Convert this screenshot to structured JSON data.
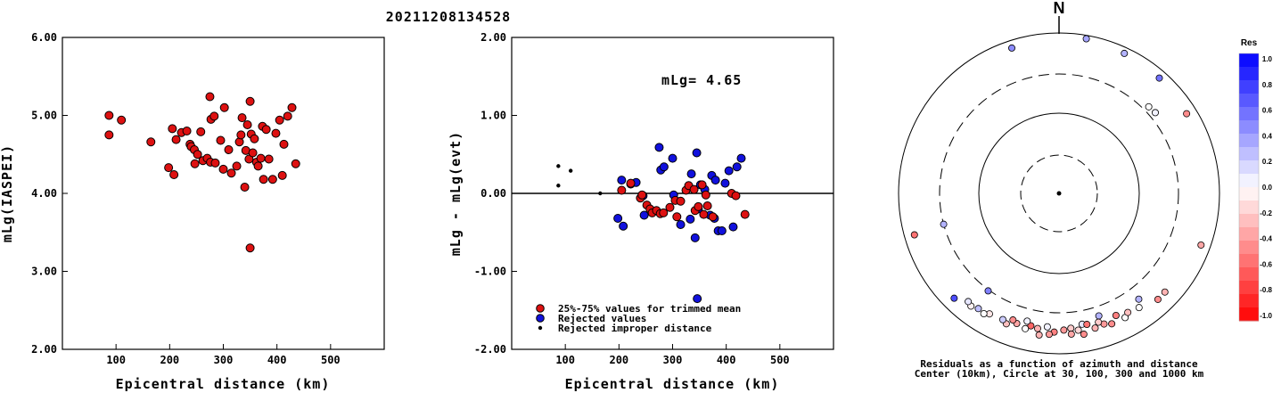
{
  "title": "20211208134528",
  "colors": {
    "trimmed": "#dd1111",
    "rejected": "#1111dd",
    "improper": "#000000"
  },
  "chart_data": [
    {
      "type": "scatter",
      "xlabel": "Epicentral distance (km)",
      "ylabel": "mLg(IASPEI)",
      "xlim": [
        0,
        600
      ],
      "ylim": [
        2.0,
        6.0
      ],
      "xticks": [
        "100",
        "200",
        "300",
        "400",
        "500"
      ],
      "yticks": [
        "2.00",
        "3.00",
        "4.00",
        "5.00",
        "6.00"
      ],
      "grid": false,
      "points": [
        [
          87,
          5.0
        ],
        [
          87,
          4.75
        ],
        [
          110,
          4.94
        ],
        [
          165,
          4.66
        ],
        [
          198,
          4.33
        ],
        [
          205,
          4.83
        ],
        [
          208,
          4.24
        ],
        [
          212,
          4.69
        ],
        [
          222,
          4.78
        ],
        [
          232,
          4.8
        ],
        [
          238,
          4.63
        ],
        [
          240,
          4.6
        ],
        [
          246,
          4.56
        ],
        [
          247,
          4.38
        ],
        [
          252,
          4.5
        ],
        [
          258,
          4.79
        ],
        [
          262,
          4.42
        ],
        [
          270,
          4.45
        ],
        [
          275,
          5.24
        ],
        [
          276,
          4.4
        ],
        [
          277,
          4.95
        ],
        [
          283,
          4.99
        ],
        [
          285,
          4.39
        ],
        [
          295,
          4.68
        ],
        [
          300,
          4.31
        ],
        [
          302,
          5.1
        ],
        [
          310,
          4.56
        ],
        [
          315,
          4.26
        ],
        [
          325,
          4.35
        ],
        [
          330,
          4.66
        ],
        [
          333,
          4.75
        ],
        [
          335,
          4.97
        ],
        [
          340,
          4.08
        ],
        [
          342,
          4.55
        ],
        [
          345,
          4.88
        ],
        [
          348,
          4.44
        ],
        [
          350,
          5.18
        ],
        [
          352,
          4.76
        ],
        [
          355,
          4.52
        ],
        [
          358,
          4.7
        ],
        [
          362,
          4.4
        ],
        [
          365,
          4.35
        ],
        [
          370,
          4.45
        ],
        [
          373,
          4.86
        ],
        [
          375,
          4.18
        ],
        [
          380,
          4.82
        ],
        [
          385,
          4.44
        ],
        [
          392,
          4.18
        ],
        [
          398,
          4.77
        ],
        [
          405,
          4.94
        ],
        [
          410,
          4.23
        ],
        [
          413,
          4.63
        ],
        [
          420,
          4.99
        ],
        [
          428,
          5.1
        ],
        [
          435,
          4.38
        ],
        [
          350,
          3.3
        ]
      ]
    },
    {
      "type": "scatter",
      "xlabel": "Epicentral distance (km)",
      "ylabel": "mLg - mLg(evt)",
      "xlim": [
        0,
        600
      ],
      "ylim": [
        -2.0,
        2.0
      ],
      "xticks": [
        "100",
        "200",
        "300",
        "400",
        "500"
      ],
      "yticks": [
        "-2.00",
        "-1.00",
        "0.00",
        "1.00",
        "2.00"
      ],
      "annotation": "mLg= 4.65",
      "series": [
        {
          "name": "25%-75% values for trimmed mean",
          "points": [
            [
              205,
              0.04
            ],
            [
              222,
              0.13
            ],
            [
              240,
              -0.06
            ],
            [
              243,
              -0.02
            ],
            [
              252,
              -0.15
            ],
            [
              258,
              -0.2
            ],
            [
              262,
              -0.25
            ],
            [
              270,
              -0.22
            ],
            [
              277,
              -0.26
            ],
            [
              283,
              -0.25
            ],
            [
              295,
              -0.18
            ],
            [
              305,
              -0.09
            ],
            [
              315,
              -0.1
            ],
            [
              325,
              0.04
            ],
            [
              330,
              0.1
            ],
            [
              340,
              0.05
            ],
            [
              342,
              -0.22
            ],
            [
              348,
              -0.17
            ],
            [
              355,
              0.11
            ],
            [
              358,
              -0.27
            ],
            [
              362,
              -0.02
            ],
            [
              365,
              -0.16
            ],
            [
              375,
              -0.3
            ],
            [
              410,
              0.0
            ],
            [
              435,
              -0.27
            ],
            [
              418,
              -0.03
            ],
            [
              308,
              -0.3
            ]
          ]
        },
        {
          "name": "Rejected values",
          "points": [
            [
              198,
              -0.32
            ],
            [
              205,
              0.17
            ],
            [
              208,
              -0.42
            ],
            [
              222,
              0.12
            ],
            [
              232,
              0.14
            ],
            [
              245,
              -0.03
            ],
            [
              247,
              -0.28
            ],
            [
              275,
              0.59
            ],
            [
              278,
              0.3
            ],
            [
              284,
              0.34
            ],
            [
              300,
              0.45
            ],
            [
              302,
              -0.02
            ],
            [
              315,
              -0.4
            ],
            [
              333,
              -0.33
            ],
            [
              335,
              0.25
            ],
            [
              342,
              -0.57
            ],
            [
              345,
              0.52
            ],
            [
              348,
              -0.2
            ],
            [
              352,
              0.11
            ],
            [
              360,
              0.05
            ],
            [
              370,
              -0.28
            ],
            [
              373,
              0.23
            ],
            [
              378,
              -0.32
            ],
            [
              380,
              0.17
            ],
            [
              385,
              -0.48
            ],
            [
              392,
              -0.48
            ],
            [
              398,
              0.13
            ],
            [
              405,
              0.29
            ],
            [
              413,
              -0.43
            ],
            [
              420,
              0.34
            ],
            [
              428,
              0.45
            ],
            [
              346,
              -1.35
            ]
          ]
        },
        {
          "name": "Rejected improper distance",
          "points": [
            [
              87,
              0.35
            ],
            [
              87,
              0.1
            ],
            [
              110,
              0.29
            ],
            [
              165,
              0.0
            ]
          ]
        }
      ]
    },
    {
      "type": "scatter",
      "subtype": "polar",
      "direction_label": "N",
      "caption_line1": "Residuals as a function of azimuth and distance",
      "caption_line2": "Center (10km), Circle at 30, 100, 300 and 1000 km",
      "colorbar_title": "Res",
      "colorbar_ticks": [
        "1.0",
        "0.8",
        "0.6",
        "0.4",
        "0.2",
        "0.0",
        "-0.2",
        "-0.4",
        "-0.6",
        "-0.8",
        "-1.0"
      ],
      "circles_km": [
        30,
        100,
        300,
        1000
      ],
      "stations": [
        {
          "az": -18,
          "dist": 800,
          "res": 0.45
        },
        {
          "az": 10,
          "dist": 905,
          "res": 0.35
        },
        {
          "az": 25,
          "dist": 840,
          "res": 0.3
        },
        {
          "az": 41,
          "dist": 800,
          "res": 0.55
        },
        {
          "az": 46,
          "dist": 350,
          "res": 0.0
        },
        {
          "az": 58,
          "dist": 745,
          "res": -0.45
        },
        {
          "az": 50,
          "dist": 360,
          "res": 0.05
        },
        {
          "az": 110,
          "dist": 760,
          "res": -0.35
        },
        {
          "az": 133,
          "dist": 630,
          "res": -0.3
        },
        {
          "az": 137,
          "dist": 635,
          "res": -0.45
        },
        {
          "az": 152,
          "dist": 560,
          "res": -0.02
        },
        {
          "az": 161,
          "dist": 520,
          "res": -0.4
        },
        {
          "az": -106,
          "dist": 745,
          "res": -0.55
        },
        {
          "az": -105,
          "dist": 300,
          "res": 0.3
        },
        {
          "az": -144,
          "dist": 310,
          "res": 0.5
        },
        {
          "az": -135,
          "dist": 700,
          "res": 0.7
        },
        {
          "az": 162,
          "dist": 395,
          "res": 0.3
        },
        {
          "az": 170,
          "dist": 445,
          "res": 0.1
        },
        {
          "az": 175,
          "dist": 480,
          "res": -0.2
        },
        {
          "az": 178,
          "dist": 500,
          "res": -0.4
        },
        {
          "az": -178,
          "dist": 530,
          "res": -0.5
        },
        {
          "az": -175,
          "dist": 460,
          "res": 0.05
        },
        {
          "az": -171,
          "dist": 500,
          "res": -0.3
        },
        {
          "az": -168,
          "dist": 480,
          "res": -0.6
        },
        {
          "az": -166,
          "dist": 540,
          "res": 0.0
        },
        {
          "az": -162,
          "dist": 500,
          "res": -0.35
        },
        {
          "az": -160,
          "dist": 470,
          "res": -0.45
        },
        {
          "az": -158,
          "dist": 560,
          "res": -0.25
        },
        {
          "az": -156,
          "dist": 520,
          "res": 0.2
        },
        {
          "az": -150,
          "dist": 535,
          "res": -0.1
        },
        {
          "az": -148,
          "dist": 580,
          "res": 0.0
        },
        {
          "az": -145,
          "dist": 560,
          "res": 0.25
        },
        {
          "az": -142,
          "dist": 600,
          "res": -0.05
        },
        {
          "az": -140,
          "dist": 570,
          "res": 0.1
        },
        {
          "az": -166,
          "dist": 430,
          "res": 0.05
        },
        {
          "az": 170,
          "dist": 600,
          "res": -0.45
        },
        {
          "az": 165,
          "dist": 540,
          "res": -0.3
        },
        {
          "az": 155,
          "dist": 470,
          "res": -0.5
        },
        {
          "az": 150,
          "dist": 510,
          "res": -0.25
        },
        {
          "az": 145,
          "dist": 540,
          "res": 0.0
        },
        {
          "az": 143,
          "dist": 440,
          "res": 0.3
        },
        {
          "az": 175,
          "dist": 570,
          "res": -0.35
        },
        {
          "az": -176,
          "dist": 570,
          "res": -0.4
        },
        {
          "az": -172,
          "dist": 600,
          "res": -0.3
        },
        {
          "az": 172,
          "dist": 520,
          "res": -0.15
        },
        {
          "az": 168,
          "dist": 460,
          "res": -0.55
        },
        {
          "az": 163,
          "dist": 470,
          "res": -0.2
        },
        {
          "az": 158,
          "dist": 560,
          "res": -0.45
        }
      ]
    }
  ]
}
